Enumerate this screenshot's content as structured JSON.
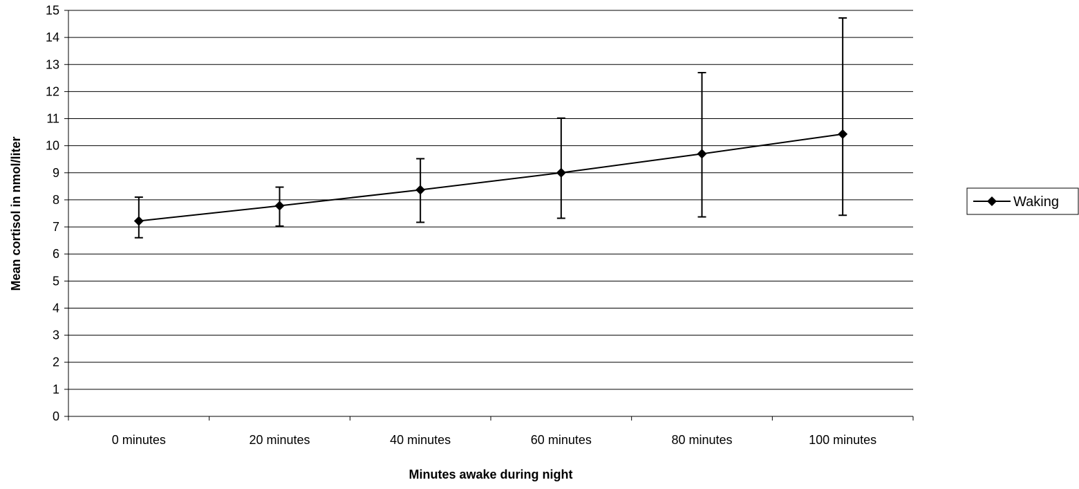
{
  "chart_data": {
    "type": "line",
    "title": "",
    "xlabel": "Minutes awake during night",
    "ylabel": "Mean cortisol in nmol/liter",
    "categories": [
      "0 minutes",
      "20 minutes",
      "40 minutes",
      "60 minutes",
      "80 minutes",
      "100 minutes"
    ],
    "ylim": [
      0,
      15
    ],
    "y_ticks": [
      "0",
      "1",
      "2",
      "3",
      "4",
      "5",
      "6",
      "7",
      "8",
      "9",
      "10",
      "11",
      "12",
      "13",
      "14",
      "15"
    ],
    "grid": "horizontal",
    "legend_position": "right",
    "series": [
      {
        "name": "Waking",
        "values": [
          7.22,
          7.78,
          8.37,
          9.0,
          9.7,
          10.43
        ],
        "error_low": [
          6.6,
          7.03,
          7.17,
          7.32,
          7.37,
          7.43
        ],
        "error_high": [
          8.1,
          8.47,
          9.52,
          11.02,
          12.7,
          14.72
        ],
        "marker": "diamond",
        "color": "#000000"
      }
    ]
  }
}
